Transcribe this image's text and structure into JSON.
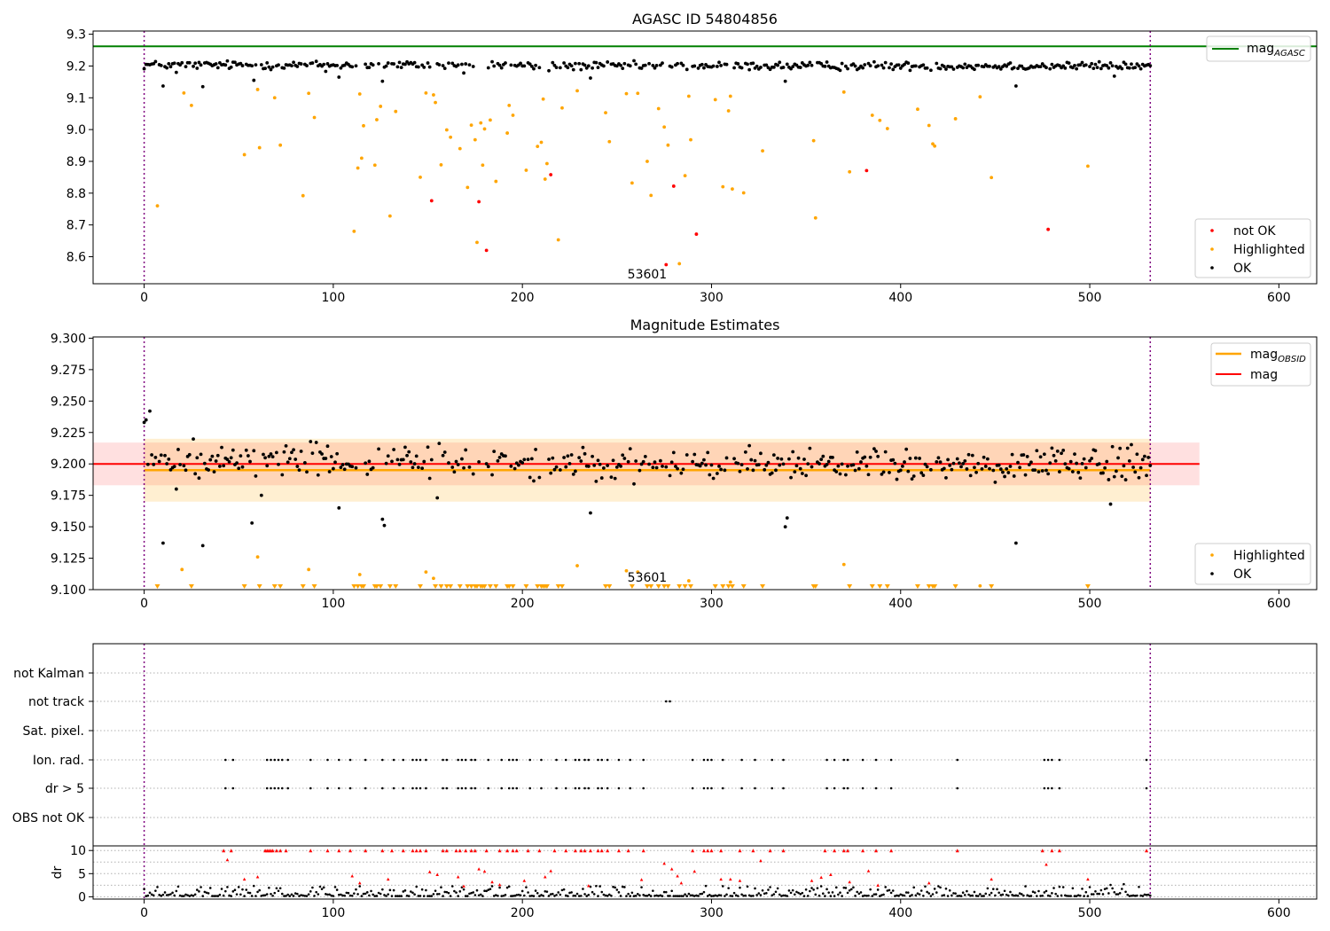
{
  "chart_data": [
    {
      "type": "scatter",
      "title": "AGASC ID 54804856",
      "xlim": [
        -27,
        620
      ],
      "ylim": [
        8.515,
        9.31
      ],
      "yticks": [
        8.6,
        8.7,
        8.8,
        8.9,
        9.0,
        9.1,
        9.2,
        9.3
      ],
      "ytick_labels": [
        "8.6",
        "8.7",
        "8.8",
        "8.9",
        "9.0",
        "9.1",
        "9.2",
        "9.3"
      ],
      "xticks": [
        0,
        100,
        200,
        300,
        400,
        500,
        600
      ],
      "xtick_labels": [
        "0",
        "100",
        "200",
        "300",
        "400",
        "500",
        "600"
      ],
      "obs_boundaries": [
        0,
        532
      ],
      "obs_label": {
        "x": 266,
        "y": 8.545,
        "text": "53601"
      },
      "mag_agasc": 9.262,
      "legend_top": {
        "placement": "top-right",
        "items": [
          {
            "label": "mag",
            "sub": "AGASC",
            "color": "#008000"
          }
        ]
      },
      "legend_bottom": {
        "placement": "lower-right",
        "items": [
          {
            "label": "not OK",
            "color": "#ff0000"
          },
          {
            "label": "Highlighted",
            "color": "#ffa500"
          },
          {
            "label": "OK",
            "color": "#000000"
          }
        ]
      },
      "ok_band": {
        "center": 9.2,
        "spread": 0.012
      },
      "ok_dips": [
        [
          10,
          9.137
        ],
        [
          17,
          9.18
        ],
        [
          31,
          9.135
        ],
        [
          58,
          9.155
        ],
        [
          96,
          9.183
        ],
        [
          103,
          9.165
        ],
        [
          126,
          9.152
        ],
        [
          169,
          9.178
        ],
        [
          214,
          9.185
        ],
        [
          236,
          9.162
        ],
        [
          244,
          9.142
        ],
        [
          258,
          9.14
        ],
        [
          339,
          9.152
        ],
        [
          461,
          9.137
        ],
        [
          513,
          9.168
        ]
      ],
      "highlighted": [
        [
          7,
          8.76
        ],
        [
          21,
          9.115
        ],
        [
          25,
          9.076
        ],
        [
          53,
          8.921
        ],
        [
          60,
          9.126
        ],
        [
          61,
          8.943
        ],
        [
          69,
          9.1
        ],
        [
          72,
          8.951
        ],
        [
          84,
          8.792
        ],
        [
          87,
          9.114
        ],
        [
          90,
          9.038
        ],
        [
          111,
          8.68
        ],
        [
          113,
          8.879
        ],
        [
          114,
          9.112
        ],
        [
          115,
          8.91
        ],
        [
          116,
          9.012
        ],
        [
          122,
          8.888
        ],
        [
          123,
          9.031
        ],
        [
          125,
          9.073
        ],
        [
          130,
          8.728
        ],
        [
          133,
          9.057
        ],
        [
          146,
          8.85
        ],
        [
          149,
          9.115
        ],
        [
          153,
          9.109
        ],
        [
          154,
          9.085
        ],
        [
          157,
          8.889
        ],
        [
          160,
          8.999
        ],
        [
          162,
          8.976
        ],
        [
          167,
          8.94
        ],
        [
          171,
          8.818
        ],
        [
          173,
          9.014
        ],
        [
          175,
          8.968
        ],
        [
          176,
          8.645
        ],
        [
          178,
          9.021
        ],
        [
          179,
          8.888
        ],
        [
          180,
          9.002
        ],
        [
          183,
          9.03
        ],
        [
          186,
          8.837
        ],
        [
          192,
          8.989
        ],
        [
          193,
          9.076
        ],
        [
          195,
          9.045
        ],
        [
          202,
          8.872
        ],
        [
          208,
          8.947
        ],
        [
          210,
          8.96
        ],
        [
          211,
          9.096
        ],
        [
          212,
          8.844
        ],
        [
          213,
          8.893
        ],
        [
          219,
          8.653
        ],
        [
          221,
          9.068
        ],
        [
          229,
          9.122
        ],
        [
          244,
          9.053
        ],
        [
          246,
          8.962
        ],
        [
          255,
          9.113
        ],
        [
          258,
          8.832
        ],
        [
          261,
          9.114
        ],
        [
          266,
          8.9
        ],
        [
          268,
          8.793
        ],
        [
          272,
          9.066
        ],
        [
          275,
          9.008
        ],
        [
          277,
          8.951
        ],
        [
          283,
          8.578
        ],
        [
          286,
          8.855
        ],
        [
          288,
          9.105
        ],
        [
          289,
          8.968
        ],
        [
          302,
          9.094
        ],
        [
          306,
          8.82
        ],
        [
          309,
          9.059
        ],
        [
          310,
          9.105
        ],
        [
          311,
          8.813
        ],
        [
          317,
          8.801
        ],
        [
          327,
          8.933
        ],
        [
          354,
          8.965
        ],
        [
          355,
          8.722
        ],
        [
          370,
          9.118
        ],
        [
          373,
          8.867
        ],
        [
          385,
          9.045
        ],
        [
          389,
          9.029
        ],
        [
          393,
          9.003
        ],
        [
          409,
          9.064
        ],
        [
          415,
          9.013
        ],
        [
          417,
          8.955
        ],
        [
          418,
          8.948
        ],
        [
          429,
          9.034
        ],
        [
          442,
          9.103
        ],
        [
          448,
          8.849
        ],
        [
          499,
          8.885
        ]
      ],
      "not_ok": [
        [
          152,
          8.776
        ],
        [
          177,
          8.773
        ],
        [
          181,
          8.62
        ],
        [
          215,
          8.858
        ],
        [
          276,
          8.575
        ],
        [
          280,
          8.822
        ],
        [
          292,
          8.671
        ],
        [
          382,
          8.871
        ],
        [
          478,
          8.686
        ]
      ]
    },
    {
      "type": "scatter",
      "title": "Magnitude Estimates",
      "xlim": [
        -27,
        620
      ],
      "ylim": [
        9.1,
        9.301
      ],
      "yticks": [
        9.1,
        9.125,
        9.15,
        9.175,
        9.2,
        9.225,
        9.25,
        9.275,
        9.3
      ],
      "ytick_labels": [
        "9.100",
        "9.125",
        "9.150",
        "9.175",
        "9.200",
        "9.225",
        "9.250",
        "9.275",
        "9.300"
      ],
      "xticks": [
        0,
        100,
        200,
        300,
        400,
        500,
        600
      ],
      "xtick_labels": [
        "0",
        "100",
        "200",
        "300",
        "400",
        "500",
        "600"
      ],
      "obs_boundaries": [
        0,
        532
      ],
      "obs_label": {
        "x": 266,
        "y": 9.102,
        "text": "53601"
      },
      "mag": 9.2,
      "mag_band": [
        9.183,
        9.217
      ],
      "mag_band_x": [
        -27,
        558
      ],
      "mag_obsid": 9.195,
      "mag_obsid_band": [
        9.17,
        9.22
      ],
      "mag_obsid_band_x": [
        0,
        532
      ],
      "legend_top": {
        "placement": "top-right",
        "items": [
          {
            "label": "mag",
            "sub": "OBSID",
            "color": "#ffa500"
          },
          {
            "label": "mag",
            "sub": "",
            "color": "#ff0000"
          }
        ]
      },
      "legend_bottom": {
        "placement": "lower-right",
        "items": [
          {
            "label": "Highlighted",
            "color": "#ffa500"
          },
          {
            "label": "OK",
            "color": "#000000"
          }
        ]
      },
      "ok_first": [
        [
          0,
          9.233
        ],
        [
          1,
          9.235
        ],
        [
          3,
          9.242
        ]
      ],
      "ok_band": {
        "center": 9.2,
        "spread": 0.012
      },
      "ok_dips": [
        [
          10,
          9.137
        ],
        [
          17,
          9.18
        ],
        [
          31,
          9.135
        ],
        [
          25,
          9.138
        ],
        [
          57,
          9.153
        ],
        [
          62,
          9.175
        ],
        [
          103,
          9.165
        ],
        [
          126,
          9.156
        ],
        [
          127,
          9.151
        ],
        [
          155,
          9.173
        ],
        [
          160,
          9.133
        ],
        [
          186,
          9.172
        ],
        [
          236,
          9.161
        ],
        [
          244,
          9.143
        ],
        [
          246,
          9.166
        ],
        [
          258,
          9.14
        ],
        [
          339,
          9.15
        ],
        [
          340,
          9.157
        ],
        [
          355,
          9.152
        ],
        [
          461,
          9.137
        ],
        [
          511,
          9.168
        ]
      ],
      "highlighted_visible": [
        [
          20,
          9.116
        ],
        [
          60,
          9.126
        ],
        [
          87,
          9.116
        ],
        [
          114,
          9.112
        ],
        [
          149,
          9.114
        ],
        [
          153,
          9.109
        ],
        [
          229,
          9.119
        ],
        [
          255,
          9.115
        ],
        [
          261,
          9.114
        ],
        [
          288,
          9.107
        ],
        [
          310,
          9.106
        ],
        [
          370,
          9.12
        ],
        [
          442,
          9.103
        ]
      ],
      "highlighted_below": [
        7,
        25,
        53,
        61,
        69,
        72,
        84,
        90,
        111,
        113,
        115,
        116,
        122,
        123,
        125,
        130,
        133,
        146,
        154,
        157,
        160,
        162,
        167,
        171,
        173,
        175,
        176,
        178,
        179,
        180,
        183,
        186,
        192,
        193,
        195,
        202,
        208,
        210,
        211,
        212,
        213,
        219,
        221,
        244,
        246,
        258,
        266,
        268,
        272,
        275,
        277,
        283,
        286,
        289,
        302,
        306,
        309,
        311,
        317,
        327,
        354,
        355,
        373,
        385,
        389,
        393,
        409,
        415,
        417,
        418,
        429,
        448,
        499
      ]
    },
    {
      "type": "scatter",
      "title": "",
      "xlim": [
        -27,
        620
      ],
      "xticks": [
        0,
        100,
        200,
        300,
        400,
        500,
        600
      ],
      "xtick_labels": [
        "0",
        "100",
        "200",
        "300",
        "400",
        "500",
        "600"
      ],
      "obs_boundaries": [
        0,
        532
      ],
      "flag_rows": [
        "not Kalman",
        "not track",
        "Sat. pixel.",
        "Ion. rad.",
        "dr > 5",
        "OBS not OK"
      ],
      "not_track": [
        276,
        278
      ],
      "ion_rad": [
        43,
        47,
        65,
        67,
        69,
        71,
        73,
        76,
        88,
        97,
        103,
        109,
        117,
        126,
        132,
        137,
        142,
        144,
        146,
        149,
        158,
        160,
        166,
        168,
        170,
        173,
        175,
        182,
        189,
        193,
        195,
        197,
        204,
        210,
        218,
        223,
        228,
        230,
        233,
        235,
        240,
        242,
        245,
        251,
        257,
        264,
        290,
        296,
        298,
        300,
        306,
        316,
        323,
        332,
        338,
        361,
        365,
        370,
        372,
        380,
        387,
        395,
        430,
        476,
        478,
        480,
        484,
        530
      ],
      "dr_gt5": [
        43,
        47,
        65,
        67,
        69,
        71,
        73,
        76,
        88,
        97,
        103,
        109,
        117,
        126,
        132,
        137,
        142,
        144,
        146,
        149,
        158,
        160,
        166,
        168,
        170,
        173,
        175,
        182,
        189,
        193,
        195,
        197,
        204,
        210,
        218,
        223,
        228,
        230,
        233,
        235,
        240,
        242,
        245,
        251,
        257,
        264,
        290,
        296,
        298,
        300,
        306,
        316,
        323,
        332,
        338,
        361,
        365,
        370,
        372,
        380,
        387,
        395,
        430,
        476,
        478,
        480,
        484,
        530
      ],
      "dr": {
        "ylim": [
          -0.5,
          11
        ],
        "yticks": [
          0,
          5,
          10
        ],
        "ytick_labels": [
          "0",
          "5",
          "10"
        ],
        "ylabel": "dr",
        "clip_value": 10,
        "capped_x": [
          42,
          46,
          64,
          65,
          66,
          67,
          68,
          70,
          72,
          75,
          88,
          97,
          103,
          109,
          117,
          126,
          131,
          137,
          142,
          144,
          146,
          149,
          158,
          160,
          165,
          167,
          170,
          173,
          175,
          181,
          188,
          192,
          195,
          197,
          203,
          209,
          217,
          223,
          228,
          231,
          233,
          236,
          240,
          242,
          245,
          251,
          256,
          264,
          290,
          296,
          298,
          300,
          305,
          315,
          322,
          331,
          338,
          360,
          365,
          370,
          372,
          380,
          387,
          395,
          430,
          475,
          480,
          484,
          530
        ],
        "red_mid": [
          [
            44,
            8.0
          ],
          [
            53,
            3.8
          ],
          [
            60,
            4.3
          ],
          [
            110,
            4.5
          ],
          [
            114,
            3.0
          ],
          [
            129,
            3.8
          ],
          [
            151,
            5.4
          ],
          [
            155,
            4.8
          ],
          [
            166,
            4.3
          ],
          [
            169,
            2.3
          ],
          [
            177,
            6.0
          ],
          [
            180,
            5.5
          ],
          [
            184,
            3.2
          ],
          [
            188,
            2.6
          ],
          [
            201,
            3.5
          ],
          [
            212,
            4.3
          ],
          [
            215,
            5.6
          ],
          [
            235,
            2.4
          ],
          [
            263,
            3.7
          ],
          [
            275,
            7.2
          ],
          [
            279,
            6.0
          ],
          [
            282,
            4.5
          ],
          [
            284,
            3.0
          ],
          [
            291,
            5.5
          ],
          [
            305,
            3.8
          ],
          [
            310,
            3.8
          ],
          [
            315,
            3.5
          ],
          [
            326,
            7.8
          ],
          [
            353,
            3.5
          ],
          [
            358,
            4.2
          ],
          [
            363,
            4.8
          ],
          [
            373,
            3.2
          ],
          [
            383,
            5.6
          ],
          [
            388,
            2.5
          ],
          [
            415,
            3.0
          ],
          [
            448,
            3.8
          ],
          [
            477,
            7.0
          ],
          [
            499,
            3.8
          ]
        ]
      }
    }
  ]
}
